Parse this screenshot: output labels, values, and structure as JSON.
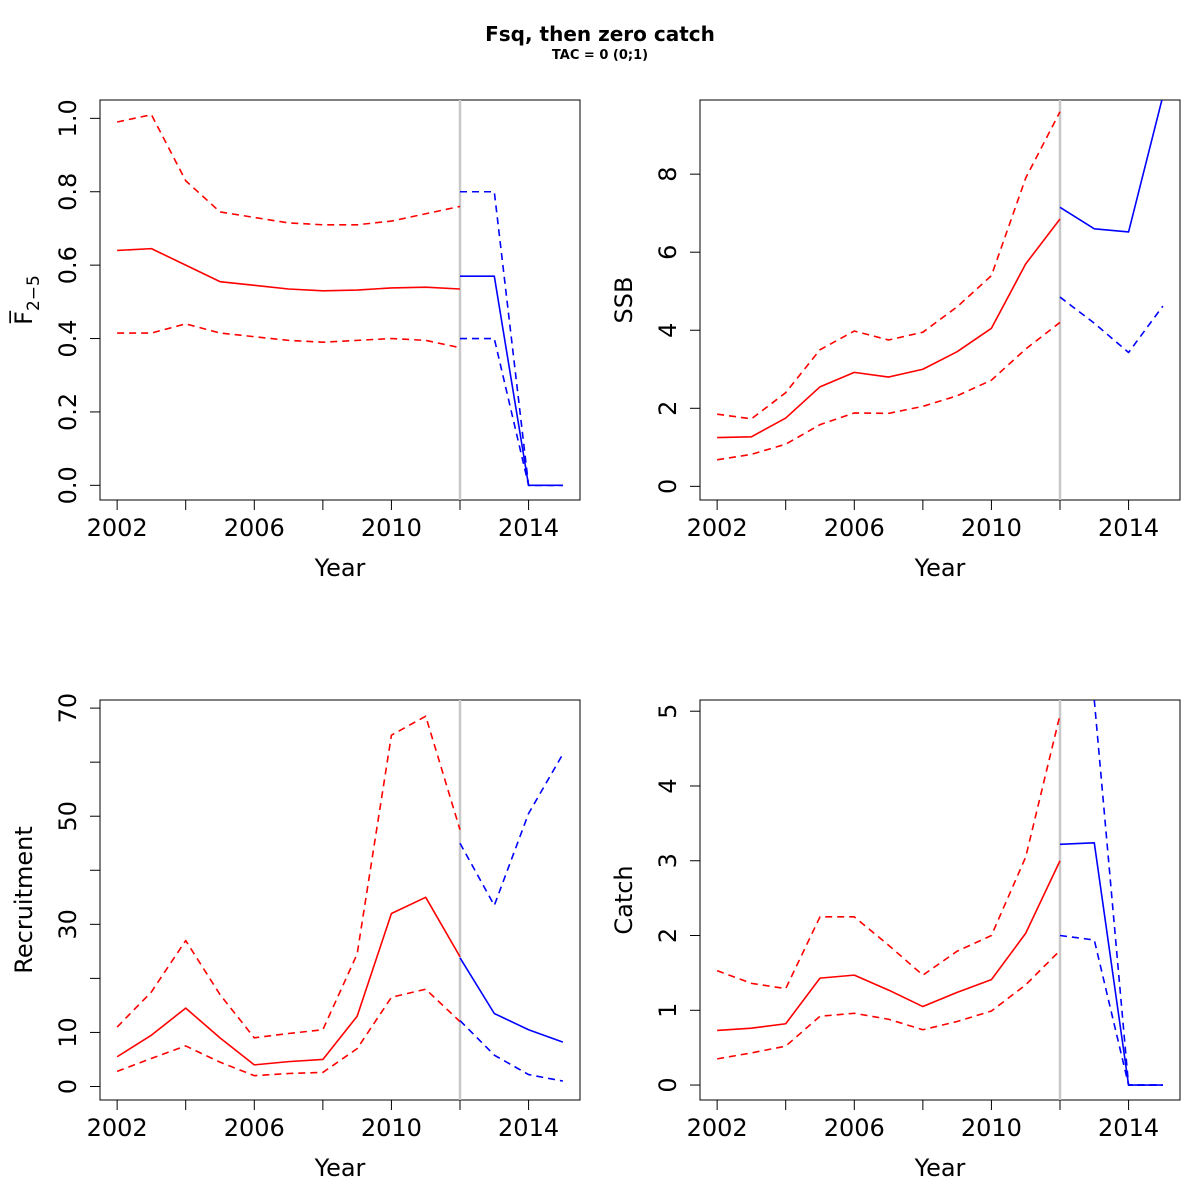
{
  "title": "Fsq, then zero catch",
  "subtitle": "TAC = 0 (0;1)",
  "colors": {
    "historical": "#ff0000",
    "forecast": "#0000ff",
    "divider": "#c8c8c8"
  },
  "chart_data": [
    {
      "type": "line",
      "panel": "top-left",
      "xlabel": "Year",
      "ylabel": "F̅",
      "ylabel_sub": "2−5",
      "xlim": [
        2001.5,
        2015.5
      ],
      "ylim": [
        -0.04,
        1.05
      ],
      "xticks": [
        2002,
        2004,
        2006,
        2008,
        2010,
        2012,
        2014
      ],
      "xtick_labels": [
        "2002",
        "",
        "2006",
        "",
        "2010",
        "",
        "2014"
      ],
      "yticks": [
        0,
        0.2,
        0.4,
        0.6,
        0.8,
        1.0
      ],
      "ytick_labels": [
        "0.0",
        "0.2",
        "0.4",
        "0.6",
        "0.8",
        "1.0"
      ],
      "divider_x": 2012,
      "series": [
        {
          "group": "historical",
          "style": "solid",
          "x": [
            2002,
            2003,
            2004,
            2005,
            2006,
            2007,
            2008,
            2009,
            2010,
            2011,
            2012
          ],
          "y": [
            0.64,
            0.645,
            0.6,
            0.555,
            0.545,
            0.535,
            0.53,
            0.532,
            0.538,
            0.54,
            0.535
          ]
        },
        {
          "group": "historical",
          "style": "dashed",
          "x": [
            2002,
            2003,
            2004,
            2005,
            2006,
            2007,
            2008,
            2009,
            2010,
            2011,
            2012
          ],
          "y": [
            0.99,
            1.01,
            0.83,
            0.745,
            0.73,
            0.715,
            0.71,
            0.71,
            0.72,
            0.74,
            0.76
          ]
        },
        {
          "group": "historical",
          "style": "dashed",
          "x": [
            2002,
            2003,
            2004,
            2005,
            2006,
            2007,
            2008,
            2009,
            2010,
            2011,
            2012
          ],
          "y": [
            0.415,
            0.415,
            0.44,
            0.415,
            0.405,
            0.395,
            0.39,
            0.395,
            0.4,
            0.395,
            0.375
          ]
        },
        {
          "group": "forecast",
          "style": "solid",
          "x": [
            2012,
            2013,
            2014,
            2015
          ],
          "y": [
            0.57,
            0.57,
            0.0,
            0.0
          ]
        },
        {
          "group": "forecast",
          "style": "dashed",
          "x": [
            2012,
            2013,
            2014,
            2015
          ],
          "y": [
            0.8,
            0.8,
            0.0,
            0.0
          ]
        },
        {
          "group": "forecast",
          "style": "dashed",
          "x": [
            2012,
            2013,
            2014,
            2015
          ],
          "y": [
            0.4,
            0.4,
            0.0,
            0.0
          ]
        }
      ]
    },
    {
      "type": "line",
      "panel": "top-right",
      "xlabel": "Year",
      "ylabel": "SSB",
      "xlim": [
        2001.5,
        2015.5
      ],
      "ylim": [
        -0.35,
        9.9
      ],
      "xticks": [
        2002,
        2004,
        2006,
        2008,
        2010,
        2012,
        2014
      ],
      "xtick_labels": [
        "2002",
        "",
        "2006",
        "",
        "2010",
        "",
        "2014"
      ],
      "yticks": [
        0,
        2,
        4,
        6,
        8
      ],
      "ytick_labels": [
        "0",
        "2",
        "4",
        "6",
        "8"
      ],
      "divider_x": 2012,
      "series": [
        {
          "group": "historical",
          "style": "solid",
          "x": [
            2002,
            2003,
            2004,
            2005,
            2006,
            2007,
            2008,
            2009,
            2010,
            2011,
            2012
          ],
          "y": [
            1.25,
            1.27,
            1.75,
            2.55,
            2.92,
            2.8,
            3.0,
            3.45,
            4.05,
            5.7,
            6.85
          ]
        },
        {
          "group": "historical",
          "style": "dashed",
          "x": [
            2002,
            2003,
            2004,
            2005,
            2006,
            2007,
            2008,
            2009,
            2010,
            2011,
            2012
          ],
          "y": [
            1.85,
            1.73,
            2.4,
            3.5,
            3.98,
            3.75,
            3.95,
            4.6,
            5.4,
            7.9,
            9.6
          ]
        },
        {
          "group": "historical",
          "style": "dashed",
          "x": [
            2002,
            2003,
            2004,
            2005,
            2006,
            2007,
            2008,
            2009,
            2010,
            2011,
            2012
          ],
          "y": [
            0.68,
            0.82,
            1.08,
            1.58,
            1.88,
            1.87,
            2.05,
            2.32,
            2.72,
            3.52,
            4.2
          ]
        },
        {
          "group": "forecast",
          "style": "solid",
          "x": [
            2012,
            2013,
            2014,
            2015
          ],
          "y": [
            7.15,
            6.6,
            6.52,
            10.0
          ]
        },
        {
          "group": "forecast",
          "style": "dashed",
          "x": [
            2012,
            2013,
            2014,
            2015
          ],
          "y": [
            4.85,
            4.18,
            3.43,
            4.62
          ]
        }
      ]
    },
    {
      "type": "line",
      "panel": "bottom-left",
      "xlabel": "Year",
      "ylabel": "Recruitment",
      "xlim": [
        2001.5,
        2015.5
      ],
      "ylim": [
        -2.5,
        71.5
      ],
      "xticks": [
        2002,
        2004,
        2006,
        2008,
        2010,
        2012,
        2014
      ],
      "xtick_labels": [
        "2002",
        "",
        "2006",
        "",
        "2010",
        "",
        "2014"
      ],
      "yticks": [
        0,
        10,
        20,
        30,
        40,
        50,
        60,
        70
      ],
      "ytick_labels": [
        "0",
        "10",
        "",
        "30",
        "",
        "50",
        "",
        "70"
      ],
      "divider_x": 2012,
      "series": [
        {
          "group": "historical",
          "style": "solid",
          "x": [
            2002,
            2003,
            2004,
            2005,
            2006,
            2007,
            2008,
            2009,
            2010,
            2011,
            2012
          ],
          "y": [
            5.5,
            9.5,
            14.5,
            9.0,
            4.0,
            4.6,
            5.0,
            13.0,
            32.0,
            35.0,
            24.0
          ]
        },
        {
          "group": "historical",
          "style": "dashed",
          "x": [
            2002,
            2003,
            2004,
            2005,
            2006,
            2007,
            2008,
            2009,
            2010,
            2011,
            2012
          ],
          "y": [
            11.0,
            17.5,
            27.0,
            17.0,
            9.0,
            9.8,
            10.5,
            24.5,
            65.0,
            68.5,
            47.5
          ]
        },
        {
          "group": "historical",
          "style": "dashed",
          "x": [
            2002,
            2003,
            2004,
            2005,
            2006,
            2007,
            2008,
            2009,
            2010,
            2011,
            2012
          ],
          "y": [
            2.8,
            5.2,
            7.5,
            4.5,
            2.0,
            2.4,
            2.6,
            7.0,
            16.5,
            18.0,
            12.0
          ]
        },
        {
          "group": "forecast",
          "style": "solid",
          "x": [
            2012,
            2013,
            2014,
            2015
          ],
          "y": [
            23.8,
            13.5,
            10.5,
            8.2
          ]
        },
        {
          "group": "forecast",
          "style": "dashed",
          "x": [
            2012,
            2013,
            2014,
            2015
          ],
          "y": [
            45.0,
            33.5,
            50.5,
            61.5
          ]
        },
        {
          "group": "forecast",
          "style": "dashed",
          "x": [
            2012,
            2013,
            2014,
            2015
          ],
          "y": [
            12.2,
            5.8,
            2.2,
            1.0
          ]
        }
      ]
    },
    {
      "type": "line",
      "panel": "bottom-right",
      "xlabel": "Year",
      "ylabel": "Catch",
      "xlim": [
        2001.5,
        2015.5
      ],
      "ylim": [
        -0.2,
        5.15
      ],
      "xticks": [
        2002,
        2004,
        2006,
        2008,
        2010,
        2012,
        2014
      ],
      "xtick_labels": [
        "2002",
        "",
        "2006",
        "",
        "2010",
        "",
        "2014"
      ],
      "yticks": [
        0,
        1,
        2,
        3,
        4,
        5
      ],
      "ytick_labels": [
        "0",
        "1",
        "2",
        "3",
        "4",
        "5"
      ],
      "divider_x": 2012,
      "series": [
        {
          "group": "historical",
          "style": "solid",
          "x": [
            2002,
            2003,
            2004,
            2005,
            2006,
            2007,
            2008,
            2009,
            2010,
            2011,
            2012
          ],
          "y": [
            0.73,
            0.76,
            0.82,
            1.43,
            1.47,
            1.27,
            1.05,
            1.24,
            1.41,
            2.03,
            3.0
          ]
        },
        {
          "group": "historical",
          "style": "dashed",
          "x": [
            2002,
            2003,
            2004,
            2005,
            2006,
            2007,
            2008,
            2009,
            2010,
            2011,
            2012
          ],
          "y": [
            1.53,
            1.36,
            1.29,
            2.25,
            2.25,
            1.87,
            1.47,
            1.79,
            2.0,
            3.05,
            4.95
          ]
        },
        {
          "group": "historical",
          "style": "dashed",
          "x": [
            2002,
            2003,
            2004,
            2005,
            2006,
            2007,
            2008,
            2009,
            2010,
            2011,
            2012
          ],
          "y": [
            0.35,
            0.43,
            0.52,
            0.92,
            0.96,
            0.88,
            0.74,
            0.85,
            0.99,
            1.34,
            1.8
          ]
        },
        {
          "group": "forecast",
          "style": "solid",
          "x": [
            2012,
            2013,
            2014,
            2015
          ],
          "y": [
            3.22,
            3.24,
            0.0,
            0.0
          ]
        },
        {
          "group": "forecast",
          "style": "dashed",
          "x": [
            2012,
            2013,
            2014,
            2015
          ],
          "y": [
            2.0,
            1.94,
            0.0,
            0.0
          ]
        },
        {
          "group": "forecast",
          "style": "dashed",
          "x": [
            2012,
            2013,
            2014,
            2015
          ],
          "y": [
            null,
            5.15,
            0.0,
            0.0
          ]
        }
      ]
    }
  ]
}
